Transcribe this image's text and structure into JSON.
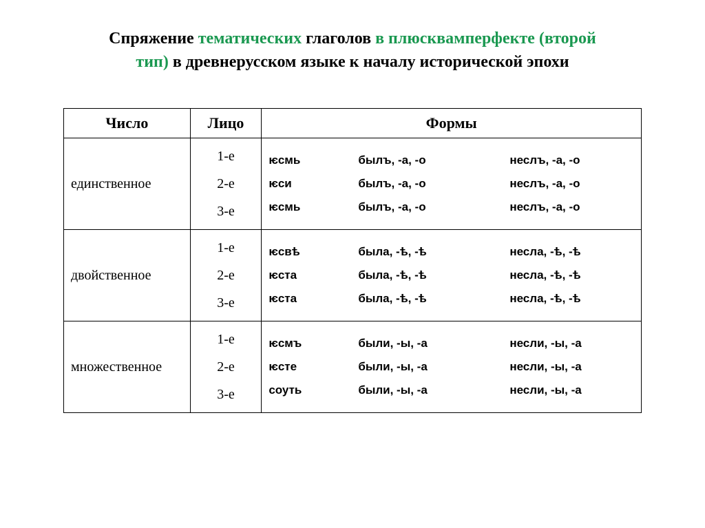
{
  "title": {
    "p1a": "Спряжение ",
    "p1b": "тематических",
    "p1c": " глаголов ",
    "p1d": "в плюсквамперфекте (второй",
    "p2a": "тип)",
    "p2b": "  в древнерусском языке к началу исторической эпохи"
  },
  "headers": {
    "number": "Число",
    "person": "Лицо",
    "forms": "Формы"
  },
  "rows": [
    {
      "number": "единственное",
      "persons": [
        "1-е",
        "2-е",
        "3-е"
      ],
      "forms": [
        [
          "ѥсмь",
          "былъ, -а, -о",
          "неслъ, -а, -о"
        ],
        [
          "ѥси",
          "былъ, -а, -о",
          "неслъ, -а, -о"
        ],
        [
          "ѥсмь",
          "былъ, -а, -о",
          "неслъ, -а, -о"
        ]
      ]
    },
    {
      "number": "двойственное",
      "persons": [
        "1-е",
        "2-е",
        "3-е"
      ],
      "forms": [
        [
          "ѥсвѣ",
          "была, -ѣ, -ѣ",
          "несла, -ѣ, -ѣ"
        ],
        [
          "ѥста",
          "была, -ѣ, -ѣ",
          "несла, -ѣ, -ѣ"
        ],
        [
          "ѥста",
          "была,  -ѣ, -ѣ",
          " несла,  -ѣ, -ѣ"
        ]
      ]
    },
    {
      "number": "множественное",
      "persons": [
        "1-е",
        "2-е",
        "3-е"
      ],
      "forms": [
        [
          "ѥсмъ",
          "были, -ы, -а",
          "несли, -ы, -а"
        ],
        [
          "ѥсте",
          "были, -ы, -а",
          "несли, -ы, -а"
        ],
        [
          "соуть",
          "были,  -ы, -а",
          " несли,  -ы, -а"
        ]
      ]
    }
  ]
}
